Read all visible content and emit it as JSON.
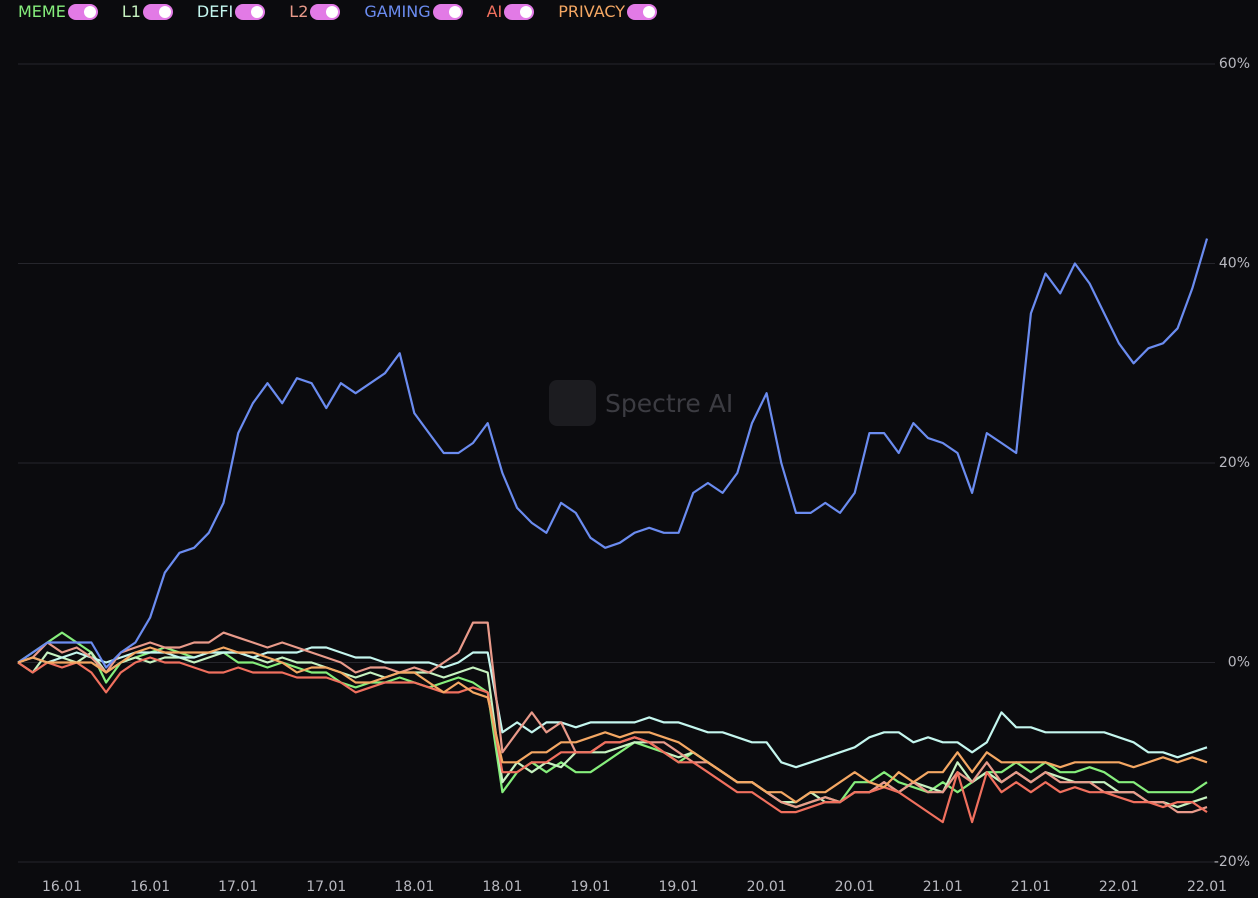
{
  "chart_data": {
    "type": "line",
    "watermark": "Spectre AI",
    "x": [
      null,
      null,
      null,
      "16.01",
      null,
      null,
      null,
      null,
      null,
      "16.01",
      null,
      null,
      null,
      null,
      null,
      "17.01",
      null,
      null,
      null,
      null,
      null,
      "17.01",
      null,
      null,
      null,
      null,
      null,
      "18.01",
      null,
      null,
      null,
      null,
      null,
      "18.01",
      null,
      null,
      null,
      null,
      null,
      "19.01",
      null,
      null,
      null,
      null,
      null,
      "19.01",
      null,
      null,
      null,
      null,
      null,
      "20.01",
      null,
      null,
      null,
      null,
      null,
      "20.01",
      null,
      null,
      null,
      null,
      null,
      "21.01",
      null,
      null,
      null,
      null,
      null,
      "21.01",
      null,
      null,
      null,
      null,
      null,
      "22.01",
      null,
      null,
      null,
      null,
      null,
      "22.01"
    ],
    "ylim": [
      -20,
      60
    ],
    "yticks": [
      {
        "value": -20,
        "label": "-20%"
      },
      {
        "value": 0,
        "label": "0%"
      },
      {
        "value": 20,
        "label": "20%"
      },
      {
        "value": 40,
        "label": "40%"
      },
      {
        "value": 60,
        "label": "60%"
      }
    ],
    "grid": true,
    "series": [
      {
        "name": "MEME",
        "color": "#86ee7c",
        "values": [
          0,
          1,
          2,
          3,
          2,
          1,
          -2,
          0,
          0.5,
          1,
          1.5,
          1,
          0.5,
          1,
          1,
          0,
          0,
          -0.5,
          0,
          -0.5,
          -1,
          -1,
          -2,
          -2.5,
          -2,
          -2,
          -1.5,
          -2,
          -2.5,
          -2,
          -1.5,
          -2,
          -3,
          -13,
          -11,
          -10,
          -11,
          -10,
          -11,
          -11,
          -10,
          -9,
          -8,
          -8.5,
          -9,
          -10,
          -9,
          -10,
          -11,
          -12,
          -12,
          -13,
          -14,
          -14.5,
          -14,
          -13.5,
          -14,
          -12,
          -12,
          -11,
          -12,
          -12.5,
          -13,
          -12,
          -13,
          -12,
          -11,
          -11,
          -10,
          -11,
          -10,
          -11,
          -11,
          -10.5,
          -11,
          -12,
          -12,
          -13,
          -13,
          -13,
          -13,
          -12
        ]
      },
      {
        "name": "L1",
        "color": "#c6f2c0",
        "values": [
          0,
          -1,
          1,
          0.5,
          0,
          1,
          -1,
          0,
          0.5,
          0,
          0.5,
          0.5,
          0,
          0.5,
          1,
          1,
          0.5,
          0,
          0.5,
          0,
          0,
          -0.5,
          -1,
          -1.5,
          -1,
          -1.5,
          -1,
          -1,
          -1,
          -1.5,
          -1,
          -0.5,
          -1,
          -12,
          -10,
          -11,
          -10,
          -10.5,
          -9,
          -9,
          -9,
          -8.5,
          -8,
          -8,
          -9,
          -9.5,
          -9,
          -10,
          -11,
          -12,
          -12,
          -13,
          -14,
          -14,
          -13,
          -14,
          -14,
          -13,
          -13,
          -12,
          -13,
          -12,
          -12.5,
          -13,
          -10,
          -12,
          -11,
          -12,
          -11,
          -12,
          -11,
          -11.5,
          -12,
          -12,
          -12,
          -13,
          -13,
          -14,
          -14,
          -14.5,
          -14,
          -13.5
        ]
      },
      {
        "name": "DEFI",
        "color": "#c4f6ee",
        "values": [
          0,
          0.5,
          0,
          0.5,
          1,
          0.5,
          0,
          0.5,
          1,
          1,
          1,
          0.5,
          0.5,
          1,
          1,
          1,
          0.5,
          1,
          1,
          1,
          1.5,
          1.5,
          1,
          0.5,
          0.5,
          0,
          0,
          0,
          0,
          -0.5,
          0,
          1,
          1,
          -7,
          -6,
          -7,
          -6,
          -6,
          -6.5,
          -6,
          -6,
          -6,
          -6,
          -5.5,
          -6,
          -6,
          -6.5,
          -7,
          -7,
          -7.5,
          -8,
          -8,
          -10,
          -10.5,
          -10,
          -9.5,
          -9,
          -8.5,
          -7.5,
          -7,
          -7,
          -8,
          -7.5,
          -8,
          -8,
          -9,
          -8,
          -5,
          -6.5,
          -6.5,
          -7,
          -7,
          -7,
          -7,
          -7,
          -7.5,
          -8,
          -9,
          -9,
          -9.5,
          -9,
          -8.5
        ]
      },
      {
        "name": "L2",
        "color": "#e99a8a",
        "values": [
          0,
          0.5,
          2,
          1,
          1.5,
          0.5,
          -1,
          1,
          1.5,
          2,
          1.5,
          1.5,
          2,
          2,
          3,
          2.5,
          2,
          1.5,
          2,
          1.5,
          1,
          0.5,
          0,
          -1,
          -0.5,
          -0.5,
          -1,
          -0.5,
          -1,
          0,
          1,
          4,
          4,
          -9,
          -7,
          -5,
          -7,
          -6,
          -9,
          -9,
          -8,
          -8,
          -7.5,
          -8,
          -8,
          -9,
          -10,
          -10,
          -11,
          -12,
          -12,
          -13,
          -14,
          -14.5,
          -14,
          -13.5,
          -14,
          -13,
          -13,
          -12,
          -13,
          -12,
          -13,
          -13,
          -11,
          -12,
          -10,
          -12,
          -11,
          -12,
          -11,
          -12,
          -12,
          -12,
          -13,
          -13,
          -13,
          -14,
          -14,
          -15,
          -15,
          -14.5
        ]
      },
      {
        "name": "GAMING",
        "color": "#6b8cf0",
        "values": [
          0,
          1,
          2,
          2,
          2,
          2,
          -0.5,
          1,
          2,
          4.5,
          9,
          11,
          11.5,
          13,
          16,
          23,
          26,
          28,
          26,
          28.5,
          28,
          25.5,
          28,
          27,
          28,
          29,
          31,
          25,
          23,
          21,
          21,
          22,
          24,
          19,
          15.5,
          14,
          13,
          16,
          15,
          12.5,
          11.5,
          12,
          13,
          13.5,
          13,
          13,
          17,
          18,
          17,
          19,
          24,
          27,
          20,
          15,
          15,
          16,
          15,
          17,
          23,
          23,
          21,
          24,
          22.5,
          22,
          21,
          17,
          23,
          22,
          21,
          35,
          39,
          37,
          40,
          38,
          35,
          32,
          30,
          31.5,
          32,
          33.5,
          37.5,
          42.5
        ]
      },
      {
        "name": "AI",
        "color": "#f0705e",
        "values": [
          0,
          -1,
          0,
          -0.5,
          0,
          -1,
          -3,
          -1,
          0,
          0.5,
          0,
          0,
          -0.5,
          -1,
          -1,
          -0.5,
          -1,
          -1,
          -1,
          -1.5,
          -1.5,
          -1.5,
          -2,
          -3,
          -2.5,
          -2,
          -2,
          -2,
          -2.5,
          -3,
          -3,
          -2.5,
          -3,
          -11,
          -11,
          -10,
          -10,
          -9,
          -9,
          -9,
          -8,
          -8,
          -7.5,
          -8,
          -9,
          -10,
          -10,
          -11,
          -12,
          -13,
          -13,
          -14,
          -15,
          -15,
          -14.5,
          -14,
          -14,
          -13,
          -13,
          -12.5,
          -13,
          -14,
          -15,
          -16,
          -11,
          -16,
          -11,
          -13,
          -12,
          -13,
          -12,
          -13,
          -12.5,
          -13,
          -13,
          -13.5,
          -14,
          -14,
          -14.5,
          -14,
          -14,
          -15
        ]
      },
      {
        "name": "PRIVACY",
        "color": "#f4a763",
        "values": [
          0,
          0.5,
          0,
          0,
          0,
          0,
          -1,
          0,
          1,
          1.5,
          1,
          1,
          1,
          1,
          1.5,
          1,
          1,
          0.5,
          0,
          -1,
          -0.5,
          -0.5,
          -1,
          -2,
          -2,
          -1.5,
          -1,
          -1,
          -2,
          -3,
          -2,
          -3,
          -3.5,
          -10,
          -10,
          -9,
          -9,
          -8,
          -8,
          -7.5,
          -7,
          -7.5,
          -7,
          -7,
          -7.5,
          -8,
          -9,
          -10,
          -11,
          -12,
          -12,
          -13,
          -13,
          -14,
          -13,
          -13,
          -12,
          -11,
          -12,
          -12.5,
          -11,
          -12,
          -11,
          -11,
          -9,
          -11,
          -9,
          -10,
          -10,
          -10,
          -10,
          -10.5,
          -10,
          -10,
          -10,
          -10,
          -10.5,
          -10,
          -9.5,
          -10,
          -9.5,
          -10
        ]
      }
    ]
  }
}
